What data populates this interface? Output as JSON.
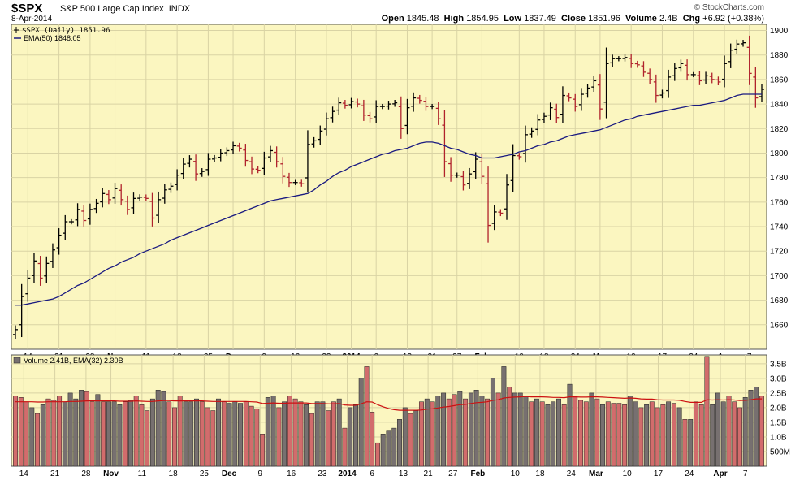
{
  "header": {
    "ticker": "$SPX",
    "name": "S&P 500 Large Cap Index",
    "exchange": "INDX",
    "date": "8-Apr-2014",
    "brand": "© StockCharts.com",
    "open_label": "Open",
    "open": "1845.48",
    "high_label": "High",
    "high": "1854.95",
    "low_label": "Low",
    "low": "1837.49",
    "close_label": "Close",
    "close": "1851.96",
    "volume_label": "Volume",
    "volume": "2.4B",
    "chg_label": "Chg",
    "chg": "+6.92 (+0.38%)"
  },
  "colors": {
    "panel_bg": "#fbf6c0",
    "grid": "#d9d3a4",
    "up": "#000000",
    "down": "#b0222c",
    "ema_price": "#1a1a80",
    "ema_volume": "#cc1111",
    "vol_up_fill": "#777070",
    "vol_down_fill": "#d26c6c"
  },
  "chart_data": [
    {
      "type": "line",
      "subtype": "ohlc",
      "legend": [
        "$SPX (Daily) 1851.96",
        "EMA(50) 1848.05"
      ],
      "legend_placement": "top-left",
      "ylim": [
        1640,
        1905
      ],
      "yticks": [
        1660,
        1680,
        1700,
        1720,
        1740,
        1760,
        1780,
        1800,
        1820,
        1840,
        1860,
        1880,
        1900
      ],
      "grid": true,
      "x_labels": [
        "14",
        "21",
        "28",
        "Nov",
        "11",
        "18",
        "25",
        "Dec",
        "9",
        "16",
        "23",
        "2014",
        "6",
        "13",
        "21",
        "27",
        "Feb",
        "10",
        "18",
        "24",
        "Mar",
        "10",
        "17",
        "24",
        "Apr",
        "7"
      ],
      "x_labels_bold": [
        "Nov",
        "Dec",
        "2014",
        "Feb",
        "Mar",
        "Apr"
      ],
      "x_label_index": [
        2,
        7,
        12,
        16,
        21,
        26,
        31,
        35,
        40,
        45,
        50,
        54,
        58,
        63,
        67,
        71,
        75,
        81,
        85,
        90,
        94,
        99,
        104,
        109,
        114,
        118
      ],
      "close": [
        1656,
        1683,
        1698,
        1712,
        1698,
        1710,
        1721,
        1733,
        1744,
        1744,
        1754,
        1745,
        1754,
        1759,
        1767,
        1762,
        1771,
        1762,
        1754,
        1763,
        1764,
        1763,
        1747,
        1762,
        1770,
        1773,
        1782,
        1791,
        1795,
        1783,
        1785,
        1795,
        1796,
        1800,
        1802,
        1806,
        1804,
        1794,
        1787,
        1786,
        1796,
        1802,
        1793,
        1781,
        1776,
        1776,
        1775,
        1807,
        1810,
        1818,
        1828,
        1834,
        1841,
        1839,
        1842,
        1840,
        1831,
        1828,
        1838,
        1838,
        1840,
        1841,
        1820,
        1837,
        1845,
        1843,
        1838,
        1838,
        1828,
        1793,
        1782,
        1782,
        1774,
        1783,
        1795,
        1781,
        1741,
        1752,
        1751,
        1774,
        1798,
        1797,
        1815,
        1818,
        1827,
        1830,
        1837,
        1829,
        1847,
        1845,
        1838,
        1848,
        1853,
        1859,
        1836,
        1873,
        1877,
        1877,
        1878,
        1873,
        1872,
        1866,
        1860,
        1847,
        1849,
        1862,
        1869,
        1873,
        1864,
        1864,
        1859,
        1863,
        1860,
        1858,
        1873,
        1884,
        1889,
        1890,
        1865,
        1845,
        1852
      ],
      "ema": [
        1676,
        1676,
        1677,
        1678,
        1679,
        1680,
        1681,
        1683,
        1686,
        1689,
        1692,
        1694,
        1697,
        1700,
        1703,
        1706,
        1708,
        1711,
        1713,
        1715,
        1718,
        1720,
        1722,
        1724,
        1726,
        1729,
        1731,
        1733,
        1735,
        1737,
        1739,
        1741,
        1743,
        1745,
        1747,
        1749,
        1751,
        1753,
        1755,
        1757,
        1759,
        1761,
        1762,
        1763,
        1764,
        1765,
        1766,
        1767,
        1770,
        1774,
        1777,
        1781,
        1784,
        1786,
        1789,
        1791,
        1793,
        1795,
        1797,
        1799,
        1800,
        1802,
        1803,
        1804,
        1806,
        1808,
        1809,
        1809,
        1808,
        1806,
        1804,
        1803,
        1801,
        1799,
        1798,
        1796,
        1796,
        1796,
        1797,
        1798,
        1799,
        1801,
        1802,
        1804,
        1806,
        1807,
        1809,
        1810,
        1812,
        1814,
        1815,
        1816,
        1817,
        1818,
        1819,
        1821,
        1823,
        1825,
        1827,
        1828,
        1830,
        1831,
        1832,
        1833,
        1834,
        1835,
        1836,
        1837,
        1838,
        1839,
        1839,
        1840,
        1841,
        1842,
        1843,
        1845,
        1847,
        1848,
        1848,
        1848,
        1848
      ]
    },
    {
      "type": "bar",
      "legend": [
        "Volume 2.41B, EMA(32) 2.30B"
      ],
      "legend_placement": "top-left",
      "ylim": [
        0,
        3.8
      ],
      "yticks": [
        0.5,
        1.0,
        1.5,
        2.0,
        2.5,
        3.0,
        3.5
      ],
      "ytick_labels": [
        "500M",
        "1.0B",
        "1.5B",
        "2.0B",
        "2.5B",
        "3.0B",
        "3.5B"
      ],
      "unit": "B",
      "volume": [
        2.4,
        2.35,
        2.2,
        2.0,
        1.8,
        2.1,
        2.3,
        2.25,
        2.4,
        2.2,
        2.5,
        2.3,
        2.6,
        2.55,
        2.2,
        2.45,
        2.2,
        2.2,
        2.2,
        2.1,
        2.2,
        2.25,
        2.4,
        2.1,
        1.9,
        2.3,
        2.6,
        2.55,
        2.2,
        2.0,
        2.4,
        2.2,
        2.2,
        2.3,
        2.2,
        2.0,
        1.9,
        2.3,
        2.2,
        2.15,
        2.2,
        2.15,
        2.2,
        2.05,
        1.95,
        1.1,
        2.35,
        2.4,
        2.0,
        2.2,
        2.4,
        2.3,
        2.2,
        2.1,
        1.8,
        2.2,
        2.2,
        1.9,
        2.2,
        2.3,
        1.3,
        2.0,
        2.1,
        3.0,
        3.4,
        1.85,
        0.8,
        1.1,
        1.2,
        1.3,
        1.6,
        2.0,
        1.8,
        1.9,
        2.2,
        2.3,
        2.2,
        2.4,
        2.5,
        2.3,
        2.45,
        2.55,
        2.3,
        2.5,
        2.6,
        2.4,
        2.3,
        3.0,
        2.5,
        3.4,
        2.7,
        2.5,
        2.5,
        2.4,
        2.2,
        2.3,
        2.2,
        2.1,
        2.2,
        2.3,
        2.1,
        2.8,
        2.4,
        2.25,
        2.2,
        2.5,
        2.3,
        2.1,
        2.2,
        2.15,
        2.15,
        2.1,
        2.4,
        2.2,
        2.0,
        2.1,
        2.2,
        2.0,
        2.1,
        2.2,
        2.15,
        2.0,
        1.6,
        1.6,
        2.2,
        2.1,
        3.75,
        2.1,
        2.5,
        2.2,
        2.4,
        2.2,
        2.0,
        2.35,
        2.6,
        2.7,
        2.4
      ],
      "ema": [
        2.2,
        2.2,
        2.2,
        2.2,
        2.19,
        2.19,
        2.2,
        2.2,
        2.2,
        2.2,
        2.21,
        2.21,
        2.22,
        2.23,
        2.23,
        2.23,
        2.23,
        2.23,
        2.23,
        2.22,
        2.22,
        2.22,
        2.23,
        2.22,
        2.21,
        2.21,
        2.23,
        2.24,
        2.24,
        2.23,
        2.23,
        2.23,
        2.23,
        2.23,
        2.23,
        2.22,
        2.21,
        2.21,
        2.21,
        2.21,
        2.21,
        2.21,
        2.21,
        2.2,
        2.19,
        2.14,
        2.15,
        2.16,
        2.15,
        2.15,
        2.16,
        2.16,
        2.16,
        2.16,
        2.14,
        2.14,
        2.14,
        2.13,
        2.13,
        2.14,
        2.09,
        2.08,
        2.08,
        2.13,
        2.2,
        2.19,
        2.1,
        2.03,
        1.97,
        1.93,
        1.91,
        1.91,
        1.91,
        1.91,
        1.92,
        1.95,
        1.96,
        1.99,
        2.02,
        2.04,
        2.07,
        2.1,
        2.11,
        2.14,
        2.17,
        2.18,
        2.2,
        2.25,
        2.27,
        2.33,
        2.35,
        2.36,
        2.37,
        2.38,
        2.37,
        2.37,
        2.37,
        2.36,
        2.35,
        2.35,
        2.34,
        2.37,
        2.37,
        2.36,
        2.36,
        2.37,
        2.37,
        2.36,
        2.35,
        2.34,
        2.33,
        2.32,
        2.33,
        2.32,
        2.3,
        2.29,
        2.29,
        2.27,
        2.26,
        2.26,
        2.26,
        2.25,
        2.21,
        2.18,
        2.18,
        2.18,
        2.27,
        2.26,
        2.27,
        2.26,
        2.27,
        2.26,
        2.24,
        2.25,
        2.27,
        2.3,
        2.3
      ]
    }
  ]
}
